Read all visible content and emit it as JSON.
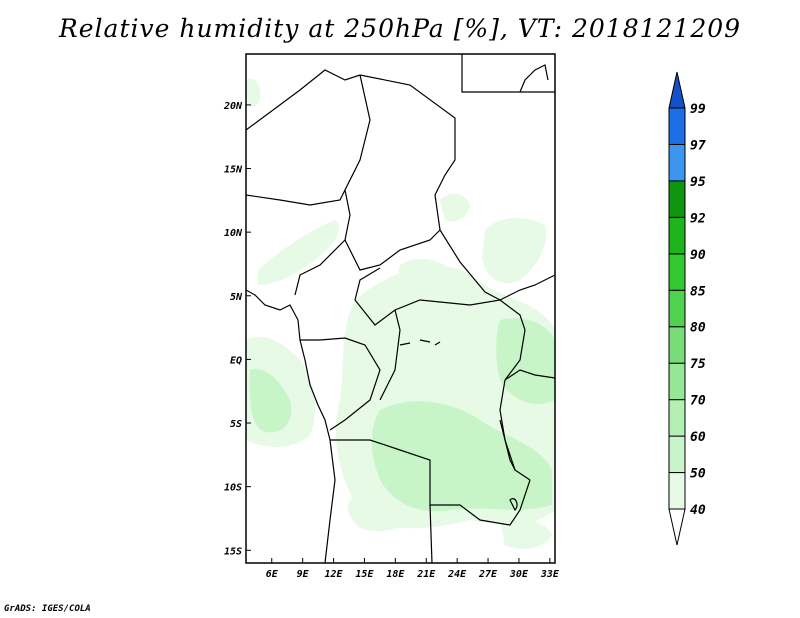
{
  "title": "Relative humidity at 250hPa [%], VT: 2018121209",
  "credit": "GrADS: IGES/COLA",
  "map": {
    "lon_range": [
      3.5,
      33.5
    ],
    "lat_range": [
      -16,
      24
    ],
    "lon_ticks": [
      "6E",
      "9E",
      "12E",
      "15E",
      "18E",
      "21E",
      "24E",
      "27E",
      "30E",
      "33E"
    ],
    "lat_ticks": [
      "20N",
      "15N",
      "10N",
      "5N",
      "EQ",
      "5S",
      "10S",
      "15S"
    ]
  },
  "colorbar": {
    "levels": [
      "40",
      "50",
      "60",
      "70",
      "75",
      "80",
      "85",
      "90",
      "92",
      "95",
      "97",
      "99"
    ],
    "colors": [
      "#ffffff",
      "#e6fae6",
      "#c8f5c8",
      "#b4f0b4",
      "#96e696",
      "#78dc78",
      "#50d250",
      "#32c832",
      "#1eb41e",
      "#0f960f",
      "#3c96f0",
      "#1e6ee6",
      "#1450c8"
    ],
    "extend": "both"
  }
}
